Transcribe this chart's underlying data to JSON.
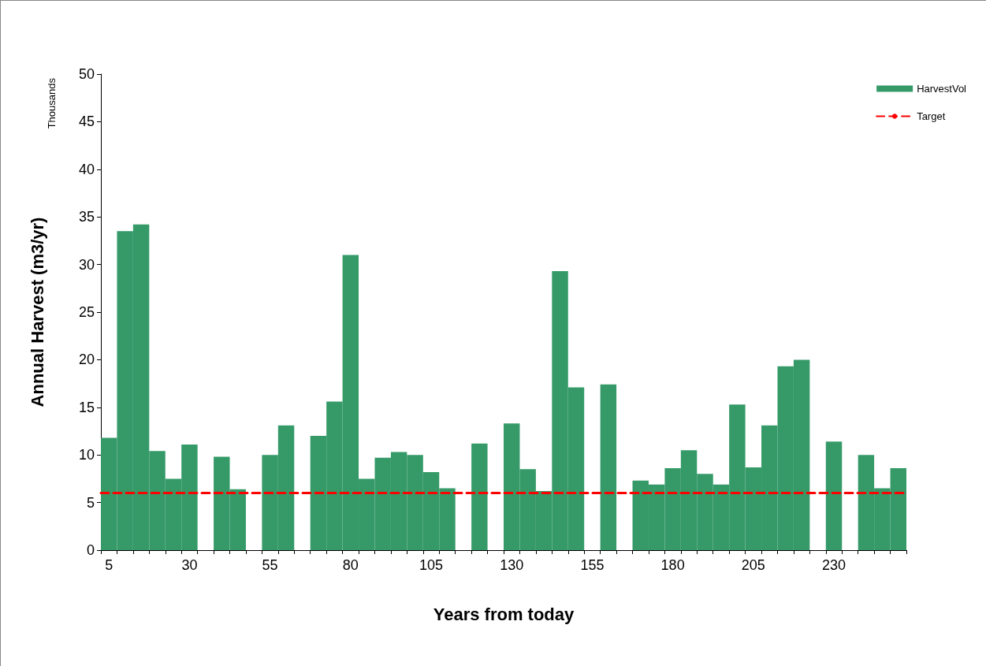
{
  "chart_data": {
    "type": "bar",
    "xlabel": "Years from today",
    "ylabel": "Annual Harvest (m3/yr)",
    "annotations": [
      "Thousands"
    ],
    "categories": [
      "5",
      null,
      null,
      null,
      null,
      "30",
      null,
      null,
      null,
      null,
      "55",
      null,
      null,
      null,
      null,
      "80",
      null,
      null,
      null,
      null,
      "105",
      null,
      null,
      null,
      null,
      "130",
      null,
      null,
      null,
      null,
      "155",
      null,
      null,
      null,
      null,
      "180",
      null,
      null,
      null,
      null,
      "205",
      null,
      null,
      null,
      null,
      "230",
      null,
      null,
      null,
      null
    ],
    "series": [
      {
        "name": "HarvestVol",
        "color": "#359a68",
        "values": [
          11.8,
          33.5,
          34.2,
          10.4,
          7.5,
          11.1,
          0,
          9.8,
          6.4,
          0,
          10.0,
          13.1,
          0,
          12.0,
          15.6,
          31.0,
          7.5,
          9.7,
          10.3,
          10.0,
          8.2,
          6.5,
          0,
          11.2,
          0,
          13.3,
          8.5,
          6.2,
          29.3,
          17.1,
          0,
          17.4,
          0,
          7.3,
          6.9,
          8.6,
          10.5,
          8.0,
          6.9,
          15.3,
          8.7,
          13.1,
          19.3,
          20.0,
          0,
          11.4,
          0,
          10.0,
          6.5,
          8.6
        ]
      }
    ],
    "ref_lines": [
      {
        "axis": "y",
        "value": 6,
        "label": "Target",
        "color": "#ff0000",
        "line_style": "dashed"
      }
    ],
    "ylim": [
      0,
      50
    ],
    "yticks": [
      0,
      5,
      10,
      15,
      20,
      25,
      30,
      35,
      40,
      45,
      50
    ],
    "grid": false,
    "legend": "top right"
  }
}
